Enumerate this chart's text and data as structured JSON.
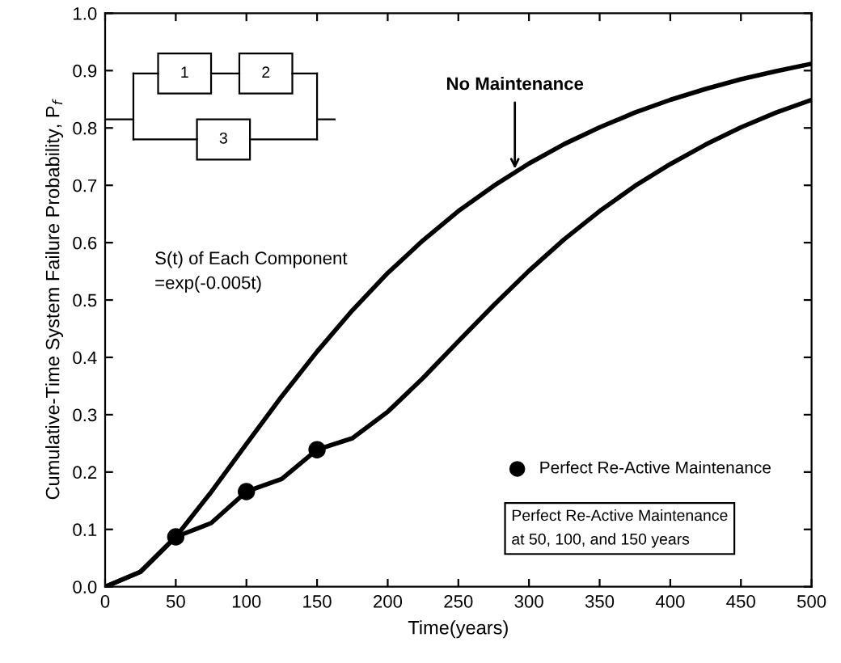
{
  "chart_data": {
    "type": "line",
    "xlabel": "Time(years)",
    "ylabel": "Cumulative-Time System Failure Probability, P$_{f}$",
    "xlim": [
      0,
      500
    ],
    "ylim": [
      0,
      1
    ],
    "xticks": [
      0,
      50,
      100,
      150,
      200,
      250,
      300,
      350,
      400,
      450,
      500
    ],
    "yticks": [
      {
        "value": 0,
        "label": "0.0"
      },
      0.1,
      0.2,
      0.3,
      0.4,
      0.5,
      0.6,
      0.7,
      0.8,
      0.9,
      {
        "value": 1,
        "label": "1.0"
      }
    ],
    "grid": false,
    "legend": "bottom right",
    "series": [
      {
        "color": "#000000",
        "x": [
          0,
          25,
          50,
          75,
          100,
          125,
          150,
          175,
          200,
          225,
          250,
          275,
          300,
          325,
          350,
          375,
          400,
          425,
          450,
          475,
          500
        ],
        "values": [
          0,
          0.026,
          0.087,
          0.165,
          0.249,
          0.332,
          0.41,
          0.482,
          0.547,
          0.604,
          0.655,
          0.699,
          0.738,
          0.772,
          0.801,
          0.827,
          0.849,
          0.868,
          0.885,
          0.899,
          0.912
        ]
      },
      {
        "color": "#000000",
        "x": [
          0,
          25,
          50,
          75,
          100,
          125,
          150,
          175,
          200,
          225,
          250,
          275,
          300,
          325,
          350,
          375,
          400,
          425,
          450,
          475,
          500
        ],
        "values": [
          0,
          0.026,
          0.087,
          0.111,
          0.166,
          0.188,
          0.239,
          0.259,
          0.305,
          0.364,
          0.428,
          0.491,
          0.551,
          0.606,
          0.655,
          0.699,
          0.737,
          0.771,
          0.801,
          0.827,
          0.849
        ]
      },
      {
        "type": "scatter",
        "name": "Perfect Re-Active Maintenance",
        "color": "#000000",
        "marker": "circle",
        "x": [
          50,
          100,
          150
        ],
        "values": [
          0.087,
          0.166,
          0.239
        ]
      }
    ],
    "annotations": [
      {
        "text": "No Maintenance",
        "x": 290,
        "y": 0.721
      },
      "S(t) of Each Component\n=exp(-0.005t)",
      "Perfect Re-Active Maintenance\nat 50, 100, and 150 years",
      "1",
      "2",
      "3"
    ]
  }
}
